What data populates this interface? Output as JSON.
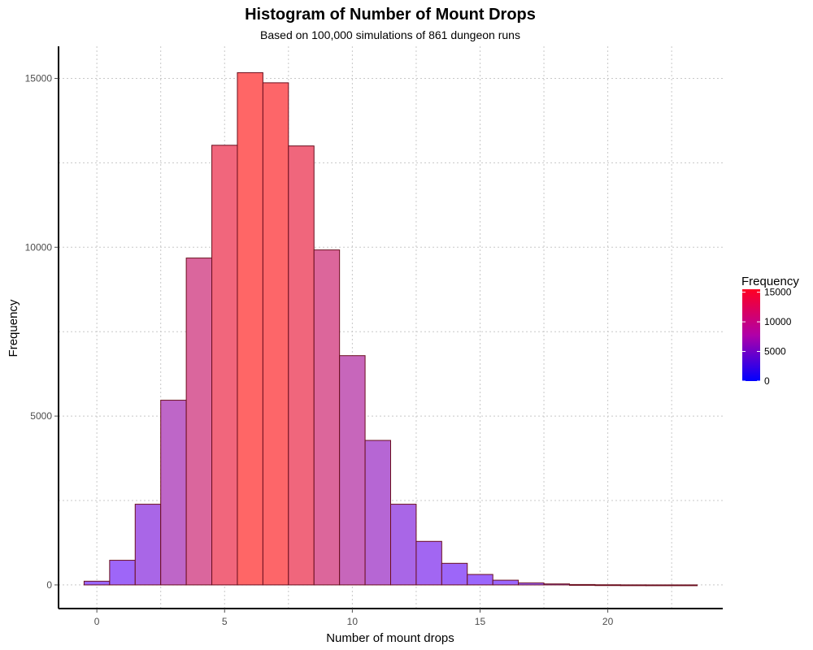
{
  "chart_data": {
    "type": "bar",
    "title": "Histogram of Number of Mount Drops",
    "subtitle": "Based on 100,000 simulations of 861 dungeon runs",
    "xlabel": "Number of mount drops",
    "ylabel": "Frequency",
    "xlim": [
      -1.5,
      24.5
    ],
    "ylim": [
      -700,
      15950
    ],
    "x_ticks": [
      0,
      5,
      10,
      15,
      20
    ],
    "x_tick_labels": [
      "0",
      "5",
      "10",
      "15",
      "20"
    ],
    "y_ticks": [
      0,
      5000,
      10000,
      15000
    ],
    "y_tick_labels": [
      "0",
      "5000",
      "10000",
      "15000"
    ],
    "grid": true,
    "categories": [
      0,
      1,
      2,
      3,
      4,
      5,
      6,
      7,
      8,
      9,
      10,
      11,
      12,
      13,
      14,
      15,
      16,
      17,
      18,
      19,
      20,
      21,
      22,
      23
    ],
    "values": [
      110,
      730,
      2390,
      5470,
      9680,
      13020,
      15170,
      14870,
      13000,
      9920,
      6790,
      4280,
      2390,
      1290,
      640,
      310,
      140,
      60,
      30,
      12,
      5,
      2,
      1,
      1
    ],
    "legend": {
      "title": "Frequency",
      "position": "right",
      "labels": [
        "15000",
        "10000",
        "5000",
        "0"
      ],
      "values": [
        15000,
        10000,
        5000,
        0
      ],
      "max": 15500,
      "color_low": "#0000ff",
      "color_high": "#ff0000"
    },
    "bar_fill_low": "#9966ff",
    "bar_fill_high": "#ff6666",
    "bar_outline": "#6b0f1f"
  }
}
